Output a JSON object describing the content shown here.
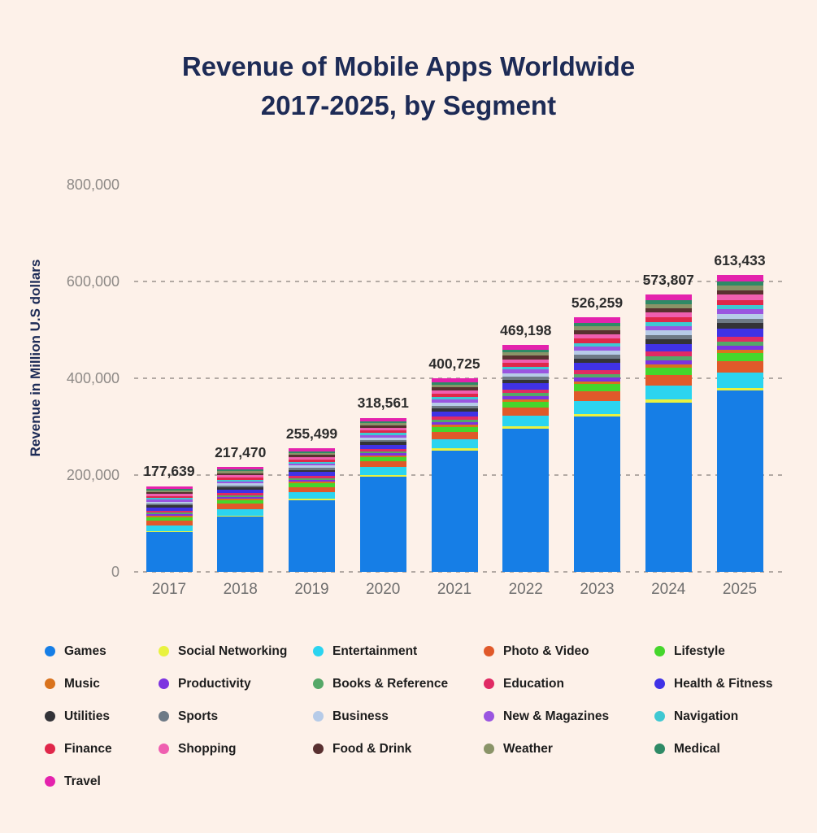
{
  "page": {
    "background": "#fdf1e9",
    "title_line1": "Revenue of Mobile Apps Worldwide",
    "title_line2": "2017-2025, by Segment",
    "title_color": "#1d2b56"
  },
  "chart_data": {
    "type": "bar",
    "stacked": true,
    "title": "Revenue of Mobile Apps Worldwide 2017-2025, by Segment",
    "xlabel": "",
    "ylabel": "Revenue in Million U.S dollars",
    "ylim": [
      0,
      800000
    ],
    "gridlines": "horizontal-dashed",
    "legend_position": "bottom",
    "y_ticks": [
      {
        "value": 800000,
        "label": "800,000"
      },
      {
        "value": 600000,
        "label": "600,000"
      },
      {
        "value": 400000,
        "label": "400,000"
      },
      {
        "value": 200000,
        "label": "200,000"
      },
      {
        "value": 0,
        "label": "0"
      }
    ],
    "categories": [
      "2017",
      "2018",
      "2019",
      "2020",
      "2021",
      "2022",
      "2023",
      "2024",
      "2025"
    ],
    "totals": [
      177639,
      217470,
      255499,
      318561,
      400725,
      469198,
      526259,
      573807,
      613433
    ],
    "total_labels": [
      "177,639",
      "217,470",
      "255,499",
      "318,561",
      "400,725",
      "469,198",
      "526,259",
      "573,807",
      "613,433"
    ],
    "series": [
      {
        "name": "Games",
        "color": "#167ee6",
        "values": [
          81700,
          114100,
          148200,
          197500,
          250900,
          295600,
          321000,
          350000,
          374200
        ]
      },
      {
        "name": "Social Networking",
        "color": "#e9f23f",
        "values": [
          2494,
          2688,
          2790,
          3148,
          3895,
          4514,
          5337,
          5819,
          6220
        ]
      },
      {
        "name": "Entertainment",
        "color": "#2bd4f0",
        "values": [
          12375,
          13332,
          13846,
          15618,
          19327,
          22392,
          26478,
          28876,
          30866
        ]
      },
      {
        "name": "Photo & Video",
        "color": "#e0592a",
        "values": [
          9594,
          10337,
          10730,
          12106,
          14983,
          17360,
          20526,
          22381,
          23923
        ]
      },
      {
        "name": "Lifestyle",
        "color": "#45d62c",
        "values": [
          6716,
          7236,
          7511,
          8474,
          10488,
          12152,
          14368,
          15666,
          16746
        ]
      },
      {
        "name": "Music",
        "color": "#d9731d",
        "values": [
          2878,
          3101,
          3219,
          3632,
          4495,
          5208,
          6158,
          6714,
          7177
        ]
      },
      {
        "name": "Productivity",
        "color": "#7c33e0",
        "values": [
          3358,
          3618,
          3755,
          4237,
          5244,
          6076,
          7184,
          7833,
          8373
        ]
      },
      {
        "name": "Books & Reference",
        "color": "#55a868",
        "values": [
          3358,
          3618,
          3755,
          4237,
          5244,
          6076,
          7184,
          7833,
          8373
        ]
      },
      {
        "name": "Education",
        "color": "#e02a64",
        "values": [
          4317,
          4652,
          4828,
          5448,
          6742,
          7812,
          9237,
          10071,
          10765
        ]
      },
      {
        "name": "Health & Fitness",
        "color": "#4032e6",
        "values": [
          6716,
          7236,
          7511,
          8474,
          10488,
          12152,
          14368,
          15666,
          16746
        ]
      },
      {
        "name": "Utilities",
        "color": "#333338",
        "values": [
          4317,
          4652,
          4828,
          5448,
          6742,
          7812,
          9237,
          10071,
          10765
        ]
      },
      {
        "name": "Sports",
        "color": "#6e7a86",
        "values": [
          3358,
          3618,
          3755,
          4237,
          5244,
          6076,
          7184,
          7833,
          8373
        ]
      },
      {
        "name": "Business",
        "color": "#b6cbe8",
        "values": [
          4317,
          4652,
          4828,
          5448,
          6742,
          7812,
          9237,
          10071,
          10765
        ]
      },
      {
        "name": "New & Magazines",
        "color": "#9a55e0",
        "values": [
          3838,
          4135,
          4292,
          4842,
          5993,
          6944,
          8210,
          8952,
          9569
        ]
      },
      {
        "name": "Navigation",
        "color": "#3fc8d2",
        "values": [
          3358,
          3618,
          3755,
          4237,
          5244,
          6076,
          7184,
          7833,
          8373
        ]
      },
      {
        "name": "Finance",
        "color": "#e0274a",
        "values": [
          4317,
          4652,
          4828,
          5448,
          6742,
          7812,
          9237,
          10071,
          10765
        ]
      },
      {
        "name": "Shopping",
        "color": "#ef5fb0",
        "values": [
          4317,
          4652,
          4828,
          5448,
          6742,
          7812,
          9237,
          10071,
          10765
        ]
      },
      {
        "name": "Food & Drink",
        "color": "#593030",
        "values": [
          3838,
          4135,
          4292,
          4842,
          5993,
          6944,
          8210,
          8952,
          9569
        ]
      },
      {
        "name": "Weather",
        "color": "#8a9468",
        "values": [
          3838,
          4135,
          4292,
          4842,
          5993,
          6944,
          8210,
          8952,
          9569
        ]
      },
      {
        "name": "Medical",
        "color": "#2e8a66",
        "values": [
          3358,
          3618,
          3755,
          4237,
          5244,
          6076,
          7184,
          7833,
          8373
        ]
      },
      {
        "name": "Travel",
        "color": "#e422ad",
        "values": [
          5277,
          5685,
          5901,
          6658,
          8240,
          9548,
          11289,
          12309,
          13158
        ]
      }
    ]
  }
}
